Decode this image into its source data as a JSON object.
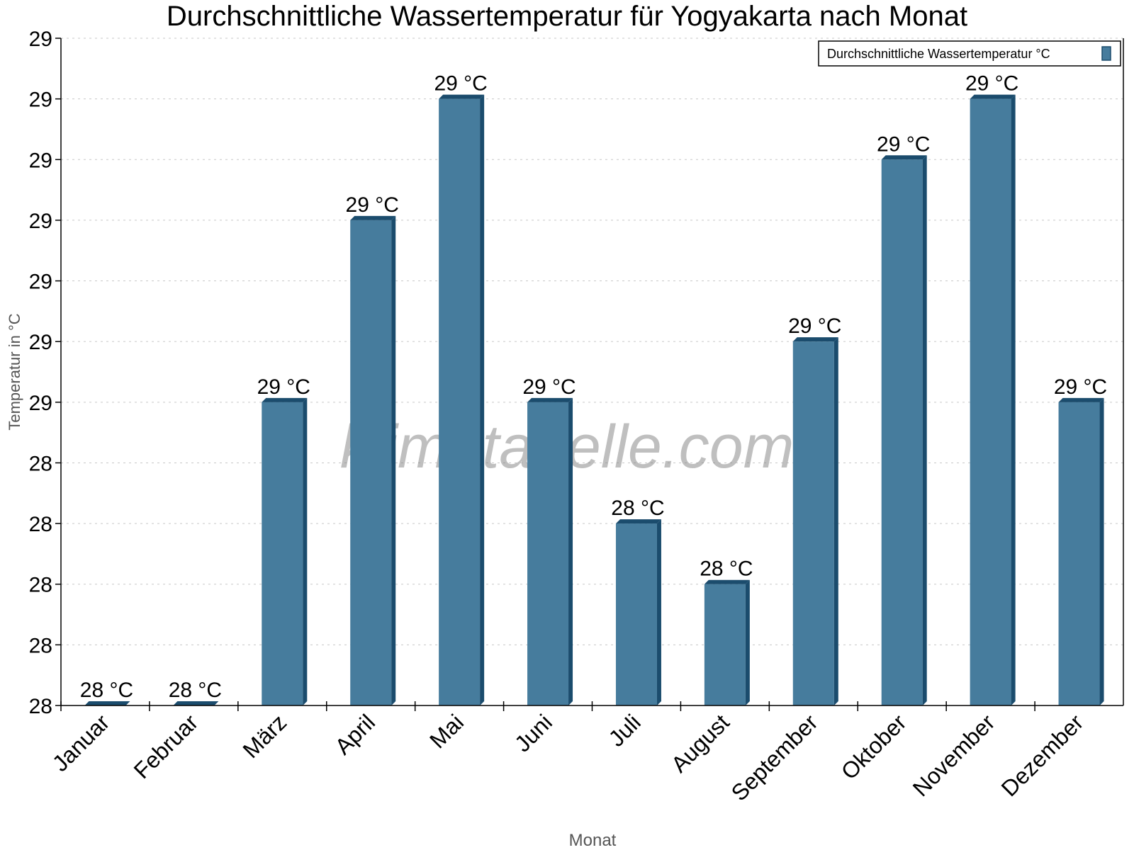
{
  "chart_data": {
    "type": "bar",
    "title": "Durchschnittliche Wassertemperatur für Yogyakarta nach Monat",
    "xlabel": "Monat",
    "ylabel": "Temperatur in °C",
    "categories": [
      "Januar",
      "Februar",
      "März",
      "April",
      "Mai",
      "Juni",
      "Juli",
      "August",
      "September",
      "Oktober",
      "November",
      "Dezember"
    ],
    "series": [
      {
        "name": "Durchschnittliche Wassertemperatur °C",
        "values": [
          28.0,
          28.0,
          28.5,
          28.8,
          29.0,
          28.5,
          28.3,
          28.2,
          28.6,
          28.9,
          29.0,
          28.5
        ],
        "labels": [
          "28 °C",
          "28 °C",
          "29 °C",
          "29 °C",
          "29 °C",
          "29 °C",
          "28 °C",
          "28 °C",
          "29 °C",
          "29 °C",
          "29 °C",
          "29 °C"
        ]
      }
    ],
    "ylim": [
      28.0,
      29.1
    ],
    "yticks": [
      28.0,
      28.1,
      28.2,
      28.3,
      28.4,
      28.5,
      28.6,
      28.7,
      28.8,
      28.9,
      29.0,
      29.1
    ],
    "ytick_labels": [
      "28",
      "28",
      "28",
      "28",
      "28",
      "29",
      "29",
      "29",
      "29",
      "29",
      "29",
      "29"
    ],
    "grid": true,
    "legend": "top-right",
    "colors": {
      "bar": "#467c9d",
      "bar_dark": "#1b4c6d",
      "grid": "#c8c8c8"
    },
    "watermark": "klimatabelle.com"
  }
}
